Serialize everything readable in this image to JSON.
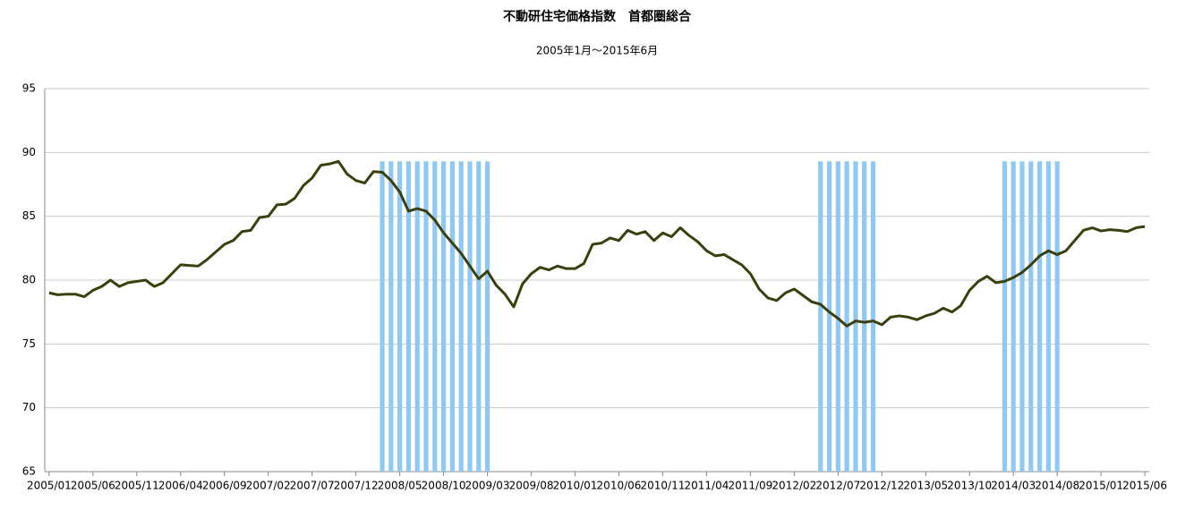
{
  "chart_data": {
    "type": "line",
    "title": "不動研住宅価格指数　首都圏総合",
    "subtitle": "2005年1月～2015年6月",
    "categories": [
      "2005/01",
      null,
      null,
      null,
      null,
      "2005/06",
      null,
      null,
      null,
      null,
      "2005/11",
      null,
      null,
      null,
      null,
      "2006/04",
      null,
      null,
      null,
      null,
      "2006/09",
      null,
      null,
      null,
      null,
      "2007/02",
      null,
      null,
      null,
      null,
      "2007/07",
      null,
      null,
      null,
      null,
      "2007/12",
      null,
      null,
      null,
      null,
      "2008/05",
      null,
      null,
      null,
      null,
      "2008/10",
      null,
      null,
      null,
      null,
      "2009/03",
      null,
      null,
      null,
      null,
      "2009/08",
      null,
      null,
      null,
      null,
      "2010/01",
      null,
      null,
      null,
      null,
      "2010/06",
      null,
      null,
      null,
      null,
      "2010/11",
      null,
      null,
      null,
      null,
      "2011/04",
      null,
      null,
      null,
      null,
      "2011/09",
      null,
      null,
      null,
      null,
      "2012/02",
      null,
      null,
      null,
      null,
      "2012/07",
      null,
      null,
      null,
      null,
      "2012/12",
      null,
      null,
      null,
      null,
      "2013/05",
      null,
      null,
      null,
      null,
      "2013/10",
      null,
      null,
      null,
      null,
      "2014/03",
      null,
      null,
      null,
      null,
      "2014/08",
      null,
      null,
      null,
      null,
      "2015/01",
      null,
      null,
      null,
      null,
      "2015/06"
    ],
    "series": [
      {
        "kind": "bar",
        "color": "#8fc9f3",
        "values": [
          null,
          null,
          null,
          null,
          null,
          null,
          null,
          null,
          null,
          null,
          null,
          null,
          null,
          null,
          null,
          null,
          null,
          null,
          null,
          null,
          null,
          null,
          null,
          null,
          null,
          null,
          null,
          null,
          null,
          null,
          null,
          null,
          null,
          null,
          null,
          null,
          null,
          null,
          89.3,
          89.3,
          89.3,
          89.3,
          89.3,
          89.3,
          89.3,
          89.3,
          89.3,
          89.3,
          89.3,
          89.3,
          89.3,
          null,
          null,
          null,
          null,
          null,
          null,
          null,
          null,
          null,
          null,
          null,
          null,
          null,
          null,
          null,
          null,
          null,
          null,
          null,
          null,
          null,
          null,
          null,
          null,
          null,
          null,
          null,
          null,
          null,
          null,
          null,
          null,
          null,
          null,
          null,
          null,
          null,
          89.3,
          89.3,
          89.3,
          89.3,
          89.3,
          89.3,
          89.3,
          null,
          null,
          null,
          null,
          null,
          null,
          null,
          null,
          null,
          null,
          null,
          null,
          null,
          null,
          89.3,
          89.3,
          89.3,
          89.3,
          89.3,
          89.3,
          89.3,
          null,
          null,
          null,
          null,
          null,
          null,
          null,
          null,
          null,
          null
        ]
      },
      {
        "kind": "line",
        "color": "#3b3f0e",
        "values": [
          79.0,
          78.85,
          78.9,
          78.9,
          78.7,
          79.2,
          79.5,
          80.0,
          79.5,
          79.8,
          79.9,
          80.0,
          79.5,
          79.8,
          80.5,
          81.2,
          81.15,
          81.1,
          81.6,
          82.2,
          82.8,
          83.1,
          83.8,
          83.9,
          84.9,
          85.0,
          85.9,
          85.95,
          86.4,
          87.4,
          88.0,
          89.0,
          89.1,
          89.3,
          88.3,
          87.8,
          87.6,
          88.5,
          88.45,
          87.8,
          86.9,
          85.4,
          85.6,
          85.4,
          84.7,
          83.7,
          82.9,
          82.1,
          81.1,
          80.1,
          80.7,
          79.6,
          78.9,
          77.9,
          79.7,
          80.5,
          81.0,
          80.8,
          81.1,
          80.9,
          80.9,
          81.3,
          82.8,
          82.9,
          83.3,
          83.1,
          83.9,
          83.6,
          83.8,
          83.1,
          83.7,
          83.4,
          84.1,
          83.5,
          83.0,
          82.3,
          81.9,
          82.0,
          81.6,
          81.2,
          80.5,
          79.3,
          78.6,
          78.4,
          79.0,
          79.3,
          78.8,
          78.3,
          78.1,
          77.5,
          77.0,
          76.4,
          76.8,
          76.7,
          76.8,
          76.5,
          77.1,
          77.2,
          77.1,
          76.9,
          77.2,
          77.4,
          77.8,
          77.5,
          78.0,
          79.2,
          79.9,
          80.3,
          79.8,
          79.9,
          80.2,
          80.6,
          81.2,
          81.9,
          82.3,
          82.0,
          82.3,
          83.1,
          83.9,
          84.1,
          83.85,
          83.95,
          83.9,
          83.8,
          84.1,
          84.2
        ]
      }
    ],
    "ylim": [
      65,
      95
    ],
    "yticks": [
      65,
      70,
      75,
      80,
      85,
      90,
      95
    ],
    "grid": true
  }
}
